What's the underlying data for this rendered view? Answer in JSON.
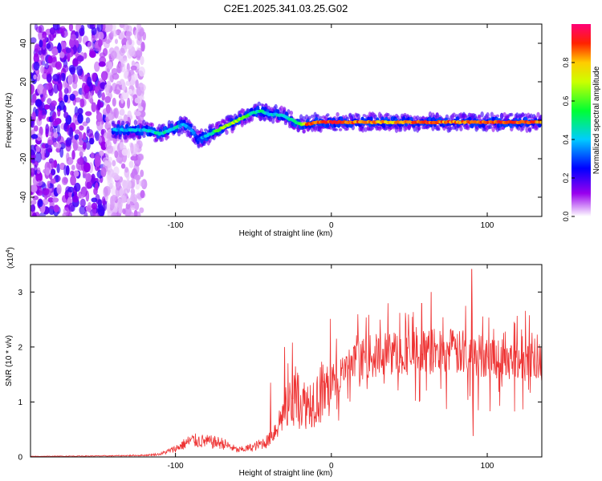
{
  "figure_title": "C2E1.2025.341.03.25.G02",
  "chart_data": [
    {
      "type": "heatmap",
      "title": "C2E1.2025.341.03.25.G02",
      "xlabel": "Height of straight line (km)",
      "ylabel": "Frequency (Hz)",
      "xlim": [
        -193,
        135
      ],
      "ylim": [
        -50,
        50
      ],
      "xticks": [
        -100,
        0,
        100
      ],
      "xtick_labels": [
        "-100",
        "0",
        "100"
      ],
      "yticks": [
        -40,
        -20,
        0,
        20,
        40
      ],
      "ytick_labels": [
        "-40",
        "-20",
        "0",
        "20",
        "40"
      ],
      "colorbar": {
        "label": "Normalized spectral amplitude",
        "range": [
          0,
          1
        ],
        "ticks": [
          0.0,
          0.2,
          0.4,
          0.6,
          0.8
        ],
        "tick_labels": [
          "0.0",
          "0.2",
          "0.4",
          "0.6",
          "0.8"
        ]
      },
      "ridge": {
        "description": "dominant frequency ridge",
        "x": [
          -140,
          -130,
          -120,
          -110,
          -100,
          -95,
          -90,
          -85,
          -80,
          -75,
          -70,
          -65,
          -60,
          -55,
          -50,
          -45,
          -40,
          -35,
          -30,
          -25,
          -20,
          -15,
          -10,
          0,
          20,
          40,
          60,
          80,
          100,
          120,
          135
        ],
        "y": [
          -5,
          -5,
          -5,
          -7,
          -4,
          -2,
          -5,
          -10,
          -8,
          -6,
          -4,
          -2,
          0,
          2,
          4,
          5,
          3,
          3,
          2,
          0,
          -2,
          -2,
          -1,
          -1,
          -1,
          -1,
          -1,
          -1,
          -1,
          -1,
          -1
        ],
        "amplitude": [
          0.45,
          0.45,
          0.45,
          0.55,
          0.5,
          0.45,
          0.4,
          0.35,
          0.45,
          0.6,
          0.7,
          0.75,
          0.7,
          0.65,
          0.5,
          0.55,
          0.45,
          0.5,
          0.5,
          0.55,
          0.6,
          0.95,
          0.95,
          0.95,
          0.9,
          0.85,
          0.95,
          0.9,
          0.95,
          0.95,
          0.9
        ]
      },
      "noise_region_x": [
        -193,
        -125
      ]
    },
    {
      "type": "line",
      "xlabel": "Height of straight line (km)",
      "ylabel": "SNR (10 * v/v)",
      "scale_label": "(x10",
      "scale_exponent": "4",
      "xlim": [
        -193,
        135
      ],
      "ylim": [
        0,
        3.5
      ],
      "xticks": [
        -100,
        0,
        100
      ],
      "xtick_labels": [
        "-100",
        "0",
        "100"
      ],
      "yticks": [
        0,
        1,
        2,
        3
      ],
      "ytick_labels": [
        "0",
        "1",
        "2",
        "3"
      ],
      "series": [
        {
          "name": "SNR",
          "color": "#ee3333",
          "envelope_x": [
            -193,
            -140,
            -120,
            -110,
            -100,
            -90,
            -80,
            -70,
            -60,
            -50,
            -40,
            -35,
            -30,
            -25,
            -20,
            -15,
            -10,
            -5,
            0,
            5,
            10,
            15,
            20,
            30,
            40,
            50,
            60,
            70,
            80,
            90,
            100,
            110,
            120,
            130,
            135
          ],
          "envelope_y": [
            0.01,
            0.02,
            0.03,
            0.05,
            0.15,
            0.3,
            0.28,
            0.25,
            0.12,
            0.18,
            0.3,
            0.55,
            0.85,
            1.05,
            1.0,
            1.0,
            1.1,
            1.2,
            1.35,
            1.45,
            1.55,
            1.65,
            1.75,
            1.8,
            1.85,
            1.85,
            1.85,
            1.9,
            1.85,
            1.8,
            1.8,
            1.75,
            1.75,
            1.7,
            1.7
          ],
          "notable_peaks": [
            {
              "x": -39,
              "y": 1.35
            },
            {
              "x": -30,
              "y": 2.0
            },
            {
              "x": -25,
              "y": 2.08
            },
            {
              "x": 58,
              "y": 2.8
            },
            {
              "x": 64,
              "y": 3.0
            },
            {
              "x": 90,
              "y": 3.42
            },
            {
              "x": 91,
              "y": 0.38
            }
          ]
        }
      ]
    }
  ]
}
